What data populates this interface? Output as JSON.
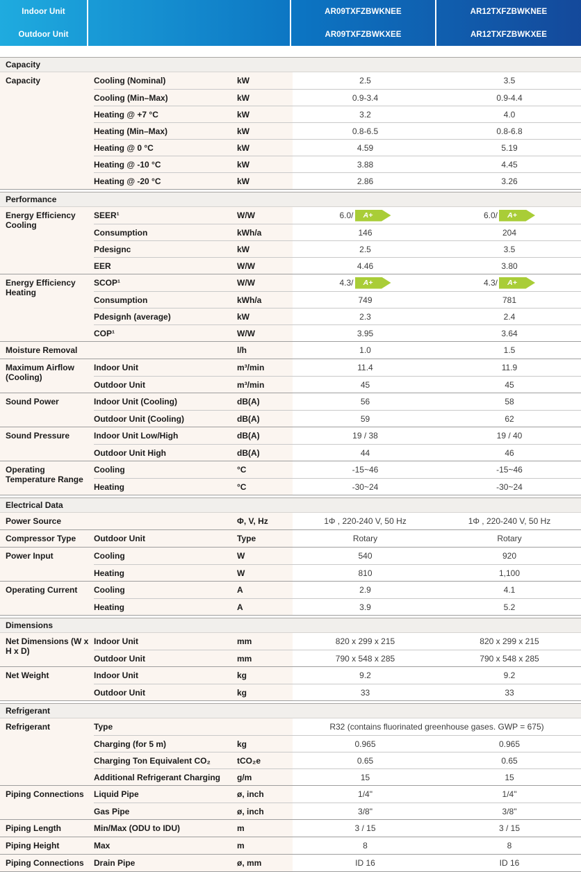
{
  "header": {
    "indoor_label": "Indoor Unit",
    "outdoor_label": "Outdoor Unit",
    "col1_indoor": "AR09TXFZBWKNEE",
    "col1_outdoor": "AR09TXFZBWKXEE",
    "col2_indoor": "AR12TXFZBWKNEE",
    "col2_outdoor": "AR12TXFZBWKXEE"
  },
  "colors": {
    "header_gradient_left": "#1fabdf",
    "header_gradient_mid": "#0c74c2",
    "header_gradient_right": "#14499b",
    "band_bg": "#f1efec",
    "left_columns_bg": "#fbf5f0",
    "energy_badge_green": "#a9cd37"
  },
  "energy_badge_label": "A+",
  "sections": [
    {
      "title": "Capacity",
      "groups": [
        {
          "category": "Capacity",
          "rows": [
            {
              "label": "Cooling (Nominal)",
              "unit": "kW",
              "v1": "2.5",
              "v2": "3.5"
            },
            {
              "label": "Cooling (Min–Max)",
              "unit": "kW",
              "v1": "0.9-3.4",
              "v2": "0.9-4.4"
            },
            {
              "label": "Heating @ +7 °C",
              "unit": "kW",
              "v1": "3.2",
              "v2": "4.0"
            },
            {
              "label": "Heating (Min–Max)",
              "unit": "kW",
              "v1": "0.8-6.5",
              "v2": "0.8-6.8"
            },
            {
              "label": "Heating @ 0 °C",
              "unit": "kW",
              "v1": "4.59",
              "v2": "5.19"
            },
            {
              "label": "Heating @ -10 °C",
              "unit": "kW",
              "v1": "3.88",
              "v2": "4.45"
            },
            {
              "label": "Heating @ -20 °C",
              "unit": "kW",
              "v1": "2.86",
              "v2": "3.26"
            }
          ]
        }
      ]
    },
    {
      "title": "Performance",
      "groups": [
        {
          "category": "Energy Efficiency Cooling",
          "rows": [
            {
              "label": "SEER¹",
              "unit": "W/W",
              "v1": "6.0/",
              "v2": "6.0/",
              "badge": "A+"
            },
            {
              "label": "Consumption",
              "unit": "kWh/a",
              "v1": "146",
              "v2": "204"
            },
            {
              "label": "Pdesignc",
              "unit": "kW",
              "v1": "2.5",
              "v2": "3.5"
            },
            {
              "label": "EER",
              "unit": "W/W",
              "v1": "4.46",
              "v2": "3.80"
            }
          ]
        },
        {
          "category": "Energy Efficiency Heating",
          "rows": [
            {
              "label": "SCOP¹",
              "unit": "W/W",
              "v1": "4.3/",
              "v2": "4.3/",
              "badge": "A+"
            },
            {
              "label": "Consumption",
              "unit": "kWh/a",
              "v1": "749",
              "v2": "781"
            },
            {
              "label": "Pdesignh (average)",
              "unit": "kW",
              "v1": "2.3",
              "v2": "2.4"
            },
            {
              "label": "COP¹",
              "unit": "W/W",
              "v1": "3.95",
              "v2": "3.64"
            }
          ]
        },
        {
          "category": "Moisture Removal",
          "rows": [
            {
              "label": "",
              "unit": "l/h",
              "v1": "1.0",
              "v2": "1.5"
            }
          ]
        },
        {
          "category": "Maximum Airflow (Cooling)",
          "rows": [
            {
              "label": "Indoor Unit",
              "unit": "m³/min",
              "v1": "11.4",
              "v2": "11.9"
            },
            {
              "label": "Outdoor Unit",
              "unit": "m³/min",
              "v1": "45",
              "v2": "45"
            }
          ]
        },
        {
          "category": "Sound Power",
          "rows": [
            {
              "label": "Indoor Unit (Cooling)",
              "unit": "dB(A)",
              "v1": "56",
              "v2": "58"
            },
            {
              "label": "Outdoor Unit (Cooling)",
              "unit": "dB(A)",
              "v1": "59",
              "v2": "62"
            }
          ]
        },
        {
          "category": "Sound Pressure",
          "rows": [
            {
              "label": "Indoor Unit Low/High",
              "unit": "dB(A)",
              "v1": "19 / 38",
              "v2": "19 / 40"
            },
            {
              "label": "Outdoor Unit High",
              "unit": "dB(A)",
              "v1": "44",
              "v2": "46"
            }
          ]
        },
        {
          "category": "Operating Temperature Range",
          "rows": [
            {
              "label": "Cooling",
              "unit": "°C",
              "v1": "-15~46",
              "v2": "-15~46"
            },
            {
              "label": "Heating",
              "unit": "°C",
              "v1": "-30~24",
              "v2": "-30~24"
            }
          ]
        }
      ]
    },
    {
      "title": "Electrical Data",
      "groups": [
        {
          "category": "Power Source",
          "rows": [
            {
              "label": "",
              "unit": "Φ, V, Hz",
              "v1": "1Φ , 220-240 V, 50 Hz",
              "v2": "1Φ , 220-240 V, 50 Hz"
            }
          ]
        },
        {
          "category": "Compressor Type",
          "rows": [
            {
              "label": "Outdoor Unit",
              "unit": "Type",
              "v1": "Rotary",
              "v2": "Rotary"
            }
          ]
        },
        {
          "category": "Power Input",
          "rows": [
            {
              "label": "Cooling",
              "unit": "W",
              "v1": "540",
              "v2": "920"
            },
            {
              "label": "Heating",
              "unit": "W",
              "v1": "810",
              "v2": "1,100"
            }
          ]
        },
        {
          "category": "Operating Current",
          "rows": [
            {
              "label": "Cooling",
              "unit": "A",
              "v1": "2.9",
              "v2": "4.1"
            },
            {
              "label": "Heating",
              "unit": "A",
              "v1": "3.9",
              "v2": "5.2"
            }
          ]
        }
      ]
    },
    {
      "title": "Dimensions",
      "groups": [
        {
          "category": "Net Dimensions (W x H x D)",
          "rows": [
            {
              "label": "Indoor Unit",
              "unit": "mm",
              "v1": "820 x 299 x 215",
              "v2": "820 x 299 x 215"
            },
            {
              "label": "Outdoor Unit",
              "unit": "mm",
              "v1": "790 x 548 x 285",
              "v2": "790 x 548 x 285"
            }
          ]
        },
        {
          "category": "Net Weight",
          "rows": [
            {
              "label": "Indoor Unit",
              "unit": "kg",
              "v1": "9.2",
              "v2": "9.2"
            },
            {
              "label": "Outdoor Unit",
              "unit": "kg",
              "v1": "33",
              "v2": "33"
            }
          ]
        }
      ]
    },
    {
      "title": "Refrigerant",
      "groups": [
        {
          "category": "Refrigerant",
          "rows": [
            {
              "label": "Type",
              "unit": "",
              "span": "R32 (contains fluorinated greenhouse gases. GWP = 675)"
            },
            {
              "label": "Charging (for 5 m)",
              "unit": "kg",
              "v1": "0.965",
              "v2": "0.965"
            },
            {
              "label": "Charging Ton Equivalent CO₂",
              "unit": "tCO₂e",
              "v1": "0.65",
              "v2": "0.65"
            },
            {
              "label": "Additional Refrigerant Charging",
              "unit": "g/m",
              "v1": "15",
              "v2": "15"
            }
          ]
        },
        {
          "category": "Piping Connections",
          "rows": [
            {
              "label": "Liquid Pipe",
              "unit": "ø, inch",
              "v1": "1/4\"",
              "v2": "1/4\""
            },
            {
              "label": "Gas Pipe",
              "unit": "ø, inch",
              "v1": "3/8\"",
              "v2": "3/8\""
            }
          ]
        },
        {
          "category": "Piping Length",
          "rows": [
            {
              "label": "Min/Max (ODU to IDU)",
              "unit": "m",
              "v1": "3 / 15",
              "v2": "3 / 15"
            }
          ]
        },
        {
          "category": "Piping Height",
          "rows": [
            {
              "label": "Max",
              "unit": "m",
              "v1": "8",
              "v2": "8"
            }
          ]
        },
        {
          "category": "Piping Connections",
          "rows": [
            {
              "label": "Drain Pipe",
              "unit": "ø, mm",
              "v1": "ID 16",
              "v2": "ID 16"
            }
          ]
        }
      ]
    }
  ]
}
